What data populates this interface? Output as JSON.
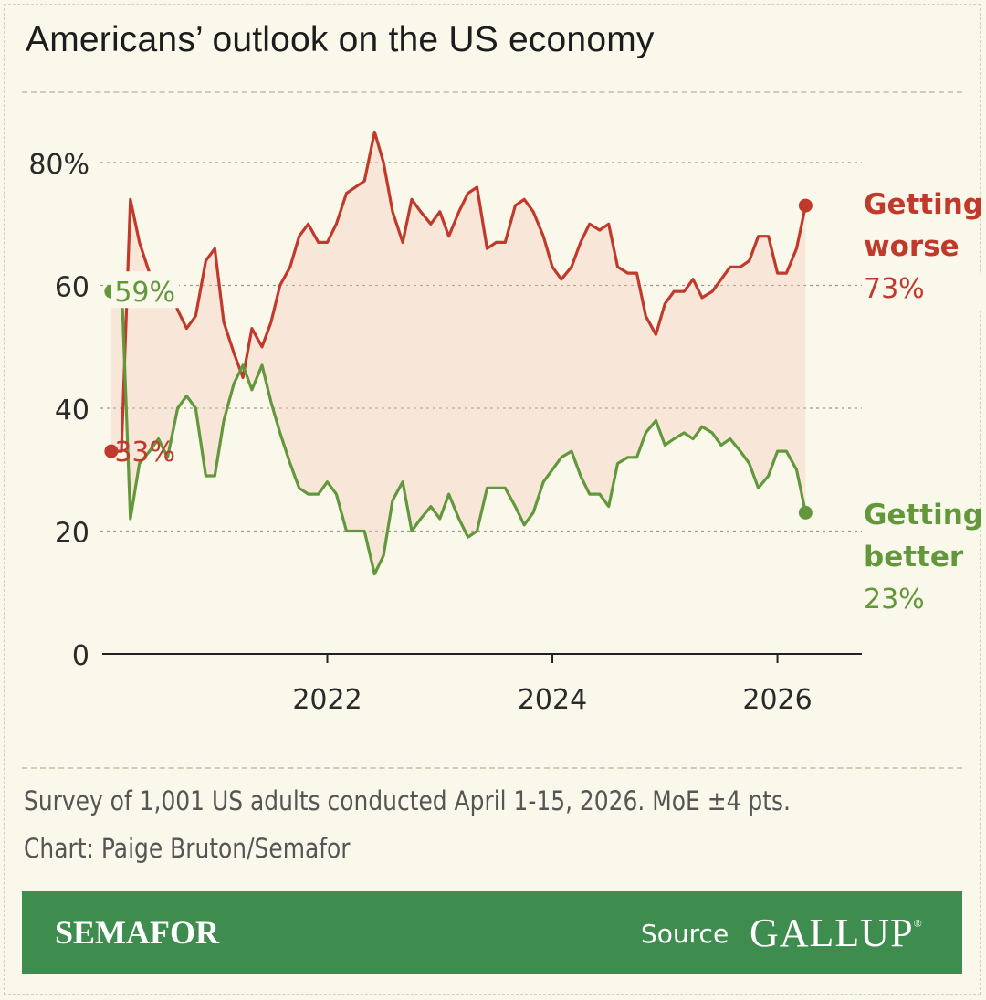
{
  "header": {
    "title": "Americans’ outlook on the US economy"
  },
  "notes": {
    "survey": "Survey of 1,001 US adults conducted April 1-15, 2026. MoE ±4 pts.",
    "credit": "Chart: Paige Bruton/Semafor"
  },
  "footer": {
    "brand": "SEMAFOR",
    "source_label": "Source",
    "source_name": "GALLUP"
  },
  "colors": {
    "background": "#f9f8ea",
    "worse": "#c0392b",
    "better": "#62973c",
    "footer": "#3f8d4e"
  },
  "chart_data": {
    "type": "line",
    "title": "Americans’ outlook on the US economy",
    "ylim": [
      0,
      80
    ],
    "xlim": [
      2020.0,
      2026.75
    ],
    "yticks": [
      {
        "value": 80,
        "label": "80%"
      },
      {
        "value": 60,
        "label": "60"
      },
      {
        "value": 40,
        "label": "40"
      },
      {
        "value": 20,
        "label": "20"
      },
      {
        "value": 0,
        "label": "0"
      }
    ],
    "xticks": [
      {
        "value": 2022,
        "label": "2022"
      },
      {
        "value": 2024,
        "label": "2024"
      },
      {
        "value": 2026,
        "label": "2026"
      }
    ],
    "grid": "horizontal dashed",
    "series": [
      {
        "name": "Getting worse",
        "label_lines": [
          "Getting",
          "worse"
        ],
        "end_label": "73%",
        "start_label": "33%",
        "color": "#c0392b",
        "points": [
          [
            2020.08,
            33
          ],
          [
            2020.17,
            33
          ],
          [
            2020.25,
            74
          ],
          [
            2020.33,
            67
          ],
          [
            2020.42,
            62
          ],
          [
            2020.5,
            60
          ],
          [
            2020.58,
            61
          ],
          [
            2020.67,
            56
          ],
          [
            2020.75,
            53
          ],
          [
            2020.83,
            55
          ],
          [
            2020.92,
            64
          ],
          [
            2021.0,
            66
          ],
          [
            2021.08,
            54
          ],
          [
            2021.17,
            49
          ],
          [
            2021.25,
            45
          ],
          [
            2021.33,
            53
          ],
          [
            2021.42,
            50
          ],
          [
            2021.5,
            54
          ],
          [
            2021.58,
            60
          ],
          [
            2021.67,
            63
          ],
          [
            2021.75,
            68
          ],
          [
            2021.83,
            70
          ],
          [
            2021.92,
            67
          ],
          [
            2022.0,
            67
          ],
          [
            2022.08,
            70
          ],
          [
            2022.17,
            75
          ],
          [
            2022.25,
            76
          ],
          [
            2022.33,
            77
          ],
          [
            2022.42,
            85
          ],
          [
            2022.5,
            80
          ],
          [
            2022.58,
            72
          ],
          [
            2022.67,
            67
          ],
          [
            2022.75,
            74
          ],
          [
            2022.83,
            72
          ],
          [
            2022.92,
            70
          ],
          [
            2023.0,
            72
          ],
          [
            2023.08,
            68
          ],
          [
            2023.17,
            72
          ],
          [
            2023.25,
            75
          ],
          [
            2023.33,
            76
          ],
          [
            2023.42,
            66
          ],
          [
            2023.5,
            67
          ],
          [
            2023.58,
            67
          ],
          [
            2023.67,
            73
          ],
          [
            2023.75,
            74
          ],
          [
            2023.83,
            72
          ],
          [
            2023.92,
            68
          ],
          [
            2024.0,
            63
          ],
          [
            2024.08,
            61
          ],
          [
            2024.17,
            63
          ],
          [
            2024.25,
            67
          ],
          [
            2024.33,
            70
          ],
          [
            2024.42,
            69
          ],
          [
            2024.5,
            70
          ],
          [
            2024.58,
            63
          ],
          [
            2024.67,
            62
          ],
          [
            2024.75,
            62
          ],
          [
            2024.83,
            55
          ],
          [
            2024.92,
            52
          ],
          [
            2025.0,
            57
          ],
          [
            2025.08,
            59
          ],
          [
            2025.17,
            59
          ],
          [
            2025.25,
            61
          ],
          [
            2025.33,
            58
          ],
          [
            2025.42,
            59
          ],
          [
            2025.5,
            61
          ],
          [
            2025.58,
            63
          ],
          [
            2025.67,
            63
          ],
          [
            2025.75,
            64
          ],
          [
            2025.83,
            68
          ],
          [
            2025.92,
            68
          ],
          [
            2026.0,
            62
          ],
          [
            2026.08,
            62
          ],
          [
            2026.17,
            66
          ],
          [
            2026.25,
            73
          ]
        ]
      },
      {
        "name": "Getting better",
        "label_lines": [
          "Getting",
          "better"
        ],
        "end_label": "23%",
        "start_label": "59%",
        "color": "#62973c",
        "points": [
          [
            2020.08,
            59
          ],
          [
            2020.17,
            61
          ],
          [
            2020.25,
            22
          ],
          [
            2020.33,
            31
          ],
          [
            2020.42,
            33
          ],
          [
            2020.5,
            35
          ],
          [
            2020.58,
            32
          ],
          [
            2020.67,
            40
          ],
          [
            2020.75,
            42
          ],
          [
            2020.83,
            40
          ],
          [
            2020.92,
            29
          ],
          [
            2021.0,
            29
          ],
          [
            2021.08,
            38
          ],
          [
            2021.17,
            44
          ],
          [
            2021.25,
            47
          ],
          [
            2021.33,
            43
          ],
          [
            2021.42,
            47
          ],
          [
            2021.5,
            41
          ],
          [
            2021.58,
            36
          ],
          [
            2021.67,
            31
          ],
          [
            2021.75,
            27
          ],
          [
            2021.83,
            26
          ],
          [
            2021.92,
            26
          ],
          [
            2022.0,
            28
          ],
          [
            2022.08,
            26
          ],
          [
            2022.17,
            20
          ],
          [
            2022.25,
            20
          ],
          [
            2022.33,
            20
          ],
          [
            2022.42,
            13
          ],
          [
            2022.5,
            16
          ],
          [
            2022.58,
            25
          ],
          [
            2022.67,
            28
          ],
          [
            2022.75,
            20
          ],
          [
            2022.83,
            22
          ],
          [
            2022.92,
            24
          ],
          [
            2023.0,
            22
          ],
          [
            2023.08,
            26
          ],
          [
            2023.17,
            22
          ],
          [
            2023.25,
            19
          ],
          [
            2023.33,
            20
          ],
          [
            2023.42,
            27
          ],
          [
            2023.5,
            27
          ],
          [
            2023.58,
            27
          ],
          [
            2023.67,
            24
          ],
          [
            2023.75,
            21
          ],
          [
            2023.83,
            23
          ],
          [
            2023.92,
            28
          ],
          [
            2024.0,
            30
          ],
          [
            2024.08,
            32
          ],
          [
            2024.17,
            33
          ],
          [
            2024.25,
            29
          ],
          [
            2024.33,
            26
          ],
          [
            2024.42,
            26
          ],
          [
            2024.5,
            24
          ],
          [
            2024.58,
            31
          ],
          [
            2024.67,
            32
          ],
          [
            2024.75,
            32
          ],
          [
            2024.83,
            36
          ],
          [
            2024.92,
            38
          ],
          [
            2025.0,
            34
          ],
          [
            2025.08,
            35
          ],
          [
            2025.17,
            36
          ],
          [
            2025.25,
            35
          ],
          [
            2025.33,
            37
          ],
          [
            2025.42,
            36
          ],
          [
            2025.5,
            34
          ],
          [
            2025.58,
            35
          ],
          [
            2025.67,
            33
          ],
          [
            2025.75,
            31
          ],
          [
            2025.83,
            27
          ],
          [
            2025.92,
            29
          ],
          [
            2026.0,
            33
          ],
          [
            2026.08,
            33
          ],
          [
            2026.17,
            30
          ],
          [
            2026.25,
            23
          ]
        ]
      }
    ]
  }
}
